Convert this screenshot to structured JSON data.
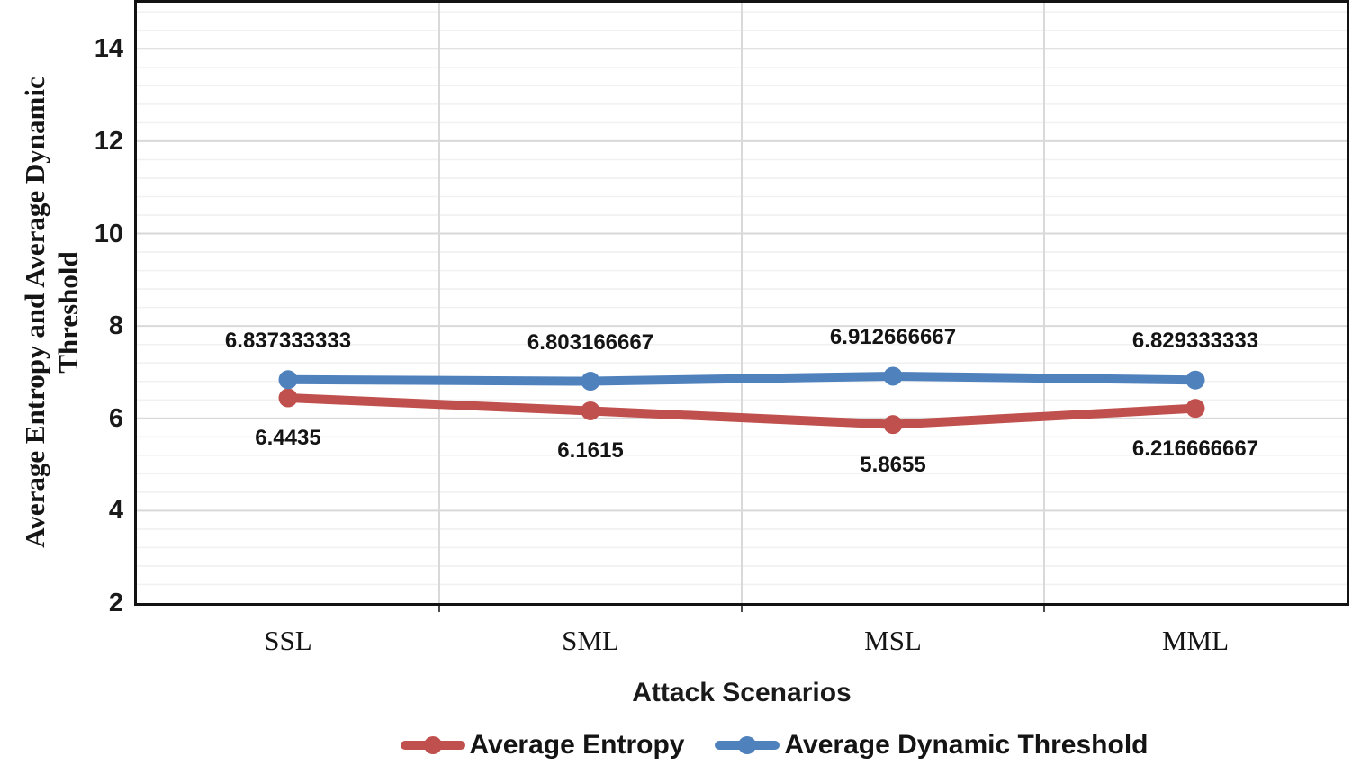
{
  "chart_data": {
    "type": "line",
    "title": "",
    "xlabel": "Attack Scenarios",
    "ylabel": "Average Entropy and Average Dynamic Threshold",
    "ylabel_display_lines": [
      "Average Entropy and Average Dynamic",
      "Threshold"
    ],
    "categories": [
      "SSL",
      "SML",
      "MSL",
      "MML"
    ],
    "series": [
      {
        "name": "Average Entropy",
        "color": "#C0504D",
        "values": [
          6.4435,
          6.1615,
          5.8655,
          6.216666667
        ],
        "data_labels": [
          "6.4435",
          "6.1615",
          "5.8655",
          "6.216666667"
        ],
        "label_side": "below"
      },
      {
        "name": "Average Dynamic Threshold",
        "color": "#4F81BD",
        "values": [
          6.837333333,
          6.803166667,
          6.912666667,
          6.829333333
        ],
        "data_labels": [
          "6.837333333",
          "6.803166667",
          "6.912666667",
          "6.829333333"
        ],
        "label_side": "above"
      }
    ],
    "ylim": [
      2,
      15
    ],
    "yticks": [
      2,
      4,
      6,
      8,
      10,
      12,
      14
    ],
    "y_major_unit": 2,
    "y_minor_unit": 0.4,
    "grid": "horizontal major and minor lines, vertical lines at category boundaries",
    "legend_position": "bottom",
    "colors": {
      "major_gridline": "#d9d9d9",
      "minor_gridline": "#f1f1f1",
      "axis_border": "#121212",
      "axis_tick_mark": "#4d4d4d"
    }
  },
  "legend": {
    "items": [
      {
        "label": "Average Entropy",
        "color": "#C0504D"
      },
      {
        "label": "Average Dynamic Threshold",
        "color": "#4F81BD"
      }
    ]
  },
  "display": {
    "ylabel_line1": "Average Entropy and Average Dynamic",
    "ylabel_line2": "Threshold"
  }
}
